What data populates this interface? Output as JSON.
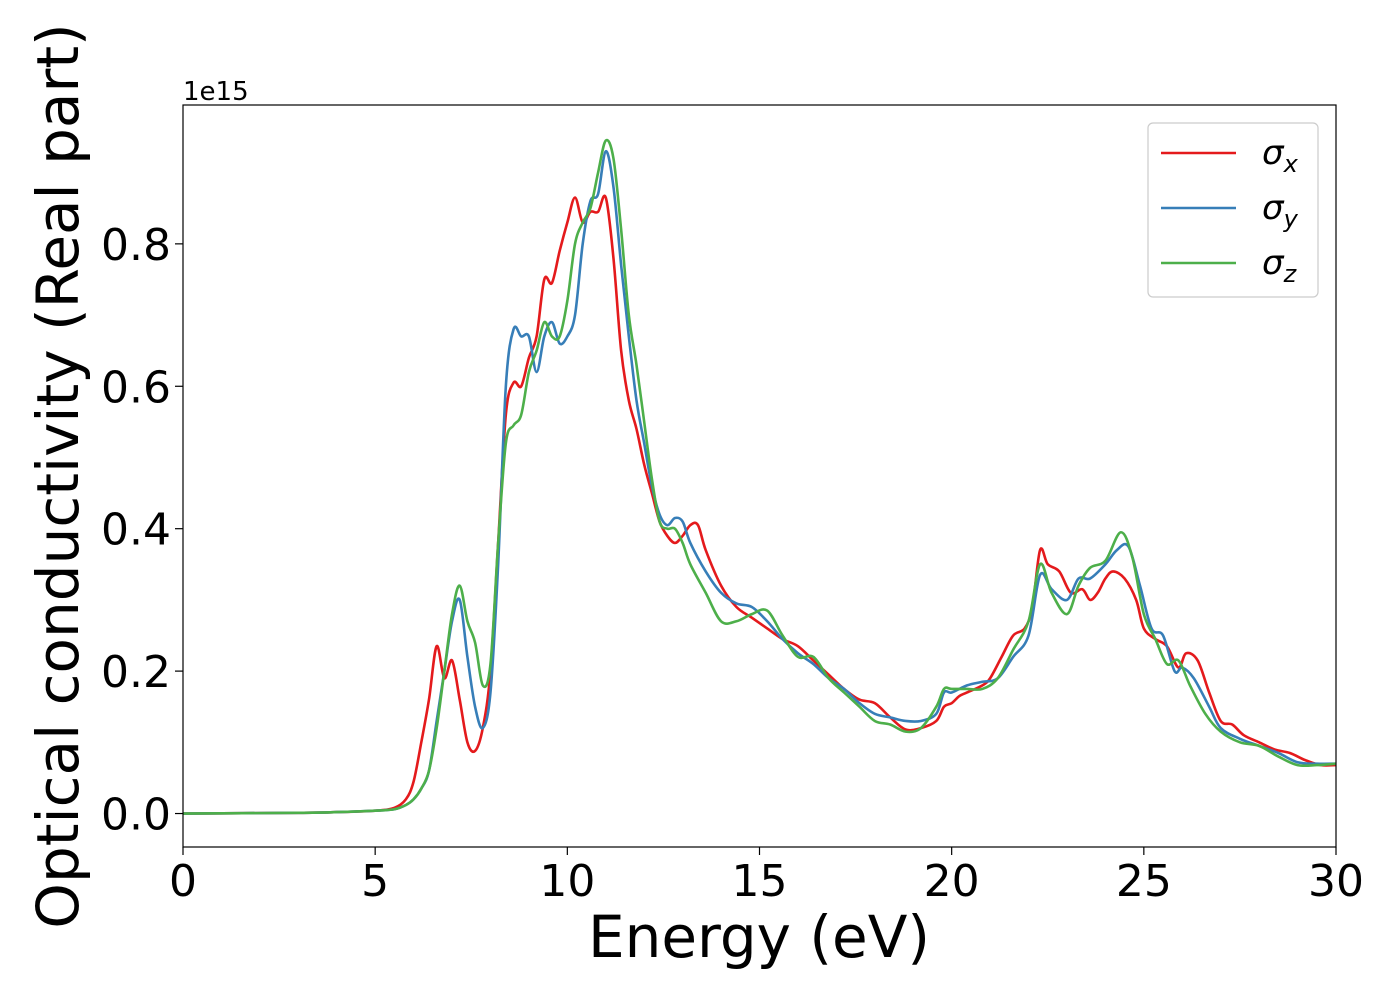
{
  "chart_data": {
    "type": "line",
    "xlabel": "Energy (eV)",
    "ylabel": "Optical conductivity (Real part)",
    "offset_label": "1e15",
    "xlim": [
      0,
      30
    ],
    "ylim": [
      -0.047,
      0.995
    ],
    "x_ticks": [
      0,
      5,
      10,
      15,
      20,
      25,
      30
    ],
    "y_ticks": [
      0.0,
      0.2,
      0.4,
      0.6,
      0.8
    ],
    "x_tick_labels": [
      "0",
      "5",
      "10",
      "15",
      "20",
      "25",
      "30"
    ],
    "y_tick_labels": [
      "0.0",
      "0.2",
      "0.4",
      "0.6",
      "0.8"
    ],
    "grid": false,
    "legend_position": "top-right",
    "series": [
      {
        "name": "σx",
        "base": "σ",
        "sub": "x",
        "color": "#e41a1c",
        "points": [
          [
            0,
            0
          ],
          [
            3,
            0.001
          ],
          [
            4,
            0.002
          ],
          [
            5,
            0.004
          ],
          [
            5.5,
            0.008
          ],
          [
            5.8,
            0.02
          ],
          [
            6.0,
            0.045
          ],
          [
            6.2,
            0.1
          ],
          [
            6.4,
            0.16
          ],
          [
            6.6,
            0.235
          ],
          [
            6.8,
            0.19
          ],
          [
            7.0,
            0.215
          ],
          [
            7.2,
            0.16
          ],
          [
            7.4,
            0.1
          ],
          [
            7.6,
            0.088
          ],
          [
            7.8,
            0.12
          ],
          [
            8.0,
            0.2
          ],
          [
            8.2,
            0.38
          ],
          [
            8.4,
            0.56
          ],
          [
            8.6,
            0.605
          ],
          [
            8.8,
            0.6
          ],
          [
            9.0,
            0.64
          ],
          [
            9.2,
            0.67
          ],
          [
            9.4,
            0.75
          ],
          [
            9.6,
            0.745
          ],
          [
            9.8,
            0.79
          ],
          [
            10.0,
            0.83
          ],
          [
            10.2,
            0.865
          ],
          [
            10.4,
            0.83
          ],
          [
            10.6,
            0.845
          ],
          [
            10.8,
            0.845
          ],
          [
            11.0,
            0.865
          ],
          [
            11.2,
            0.78
          ],
          [
            11.4,
            0.65
          ],
          [
            11.6,
            0.58
          ],
          [
            11.8,
            0.54
          ],
          [
            12.0,
            0.49
          ],
          [
            12.2,
            0.45
          ],
          [
            12.4,
            0.41
          ],
          [
            12.6,
            0.39
          ],
          [
            12.8,
            0.38
          ],
          [
            13.0,
            0.39
          ],
          [
            13.2,
            0.405
          ],
          [
            13.4,
            0.405
          ],
          [
            13.6,
            0.37
          ],
          [
            14.0,
            0.32
          ],
          [
            14.4,
            0.29
          ],
          [
            14.8,
            0.275
          ],
          [
            15.2,
            0.26
          ],
          [
            15.6,
            0.245
          ],
          [
            16.0,
            0.235
          ],
          [
            16.4,
            0.215
          ],
          [
            16.8,
            0.195
          ],
          [
            17.2,
            0.175
          ],
          [
            17.6,
            0.16
          ],
          [
            18.0,
            0.155
          ],
          [
            18.4,
            0.135
          ],
          [
            18.8,
            0.118
          ],
          [
            19.2,
            0.12
          ],
          [
            19.6,
            0.13
          ],
          [
            19.8,
            0.15
          ],
          [
            20.0,
            0.155
          ],
          [
            20.2,
            0.165
          ],
          [
            20.4,
            0.17
          ],
          [
            20.8,
            0.18
          ],
          [
            21.0,
            0.19
          ],
          [
            21.3,
            0.22
          ],
          [
            21.6,
            0.25
          ],
          [
            21.9,
            0.26
          ],
          [
            22.1,
            0.29
          ],
          [
            22.3,
            0.37
          ],
          [
            22.5,
            0.35
          ],
          [
            22.8,
            0.34
          ],
          [
            23.1,
            0.31
          ],
          [
            23.4,
            0.315
          ],
          [
            23.6,
            0.3
          ],
          [
            23.8,
            0.31
          ],
          [
            24.0,
            0.33
          ],
          [
            24.2,
            0.34
          ],
          [
            24.5,
            0.33
          ],
          [
            24.8,
            0.3
          ],
          [
            25.0,
            0.26
          ],
          [
            25.3,
            0.245
          ],
          [
            25.6,
            0.235
          ],
          [
            25.9,
            0.205
          ],
          [
            26.1,
            0.225
          ],
          [
            26.4,
            0.215
          ],
          [
            26.7,
            0.17
          ],
          [
            27.0,
            0.13
          ],
          [
            27.3,
            0.125
          ],
          [
            27.6,
            0.11
          ],
          [
            28.0,
            0.1
          ],
          [
            28.4,
            0.09
          ],
          [
            28.8,
            0.085
          ],
          [
            29.2,
            0.075
          ],
          [
            29.6,
            0.068
          ],
          [
            30,
            0.068
          ]
        ]
      },
      {
        "name": "σy",
        "base": "σ",
        "sub": "y",
        "color": "#377eb8",
        "points": [
          [
            0,
            0
          ],
          [
            3,
            0.001
          ],
          [
            4,
            0.002
          ],
          [
            5,
            0.004
          ],
          [
            5.5,
            0.006
          ],
          [
            5.8,
            0.012
          ],
          [
            6.0,
            0.02
          ],
          [
            6.2,
            0.035
          ],
          [
            6.4,
            0.06
          ],
          [
            6.6,
            0.13
          ],
          [
            6.8,
            0.2
          ],
          [
            7.0,
            0.27
          ],
          [
            7.2,
            0.3
          ],
          [
            7.4,
            0.22
          ],
          [
            7.6,
            0.15
          ],
          [
            7.8,
            0.12
          ],
          [
            8.0,
            0.17
          ],
          [
            8.2,
            0.35
          ],
          [
            8.4,
            0.6
          ],
          [
            8.6,
            0.68
          ],
          [
            8.8,
            0.67
          ],
          [
            9.0,
            0.67
          ],
          [
            9.2,
            0.62
          ],
          [
            9.4,
            0.67
          ],
          [
            9.6,
            0.69
          ],
          [
            9.8,
            0.66
          ],
          [
            10.0,
            0.67
          ],
          [
            10.2,
            0.7
          ],
          [
            10.4,
            0.8
          ],
          [
            10.6,
            0.86
          ],
          [
            10.8,
            0.87
          ],
          [
            11.0,
            0.93
          ],
          [
            11.2,
            0.88
          ],
          [
            11.4,
            0.77
          ],
          [
            11.6,
            0.67
          ],
          [
            11.8,
            0.58
          ],
          [
            12.0,
            0.52
          ],
          [
            12.2,
            0.46
          ],
          [
            12.4,
            0.42
          ],
          [
            12.6,
            0.405
          ],
          [
            12.8,
            0.415
          ],
          [
            13.0,
            0.41
          ],
          [
            13.2,
            0.38
          ],
          [
            13.6,
            0.34
          ],
          [
            14.0,
            0.31
          ],
          [
            14.4,
            0.295
          ],
          [
            14.8,
            0.29
          ],
          [
            15.2,
            0.27
          ],
          [
            15.6,
            0.245
          ],
          [
            16.0,
            0.225
          ],
          [
            16.4,
            0.21
          ],
          [
            16.8,
            0.19
          ],
          [
            17.2,
            0.175
          ],
          [
            17.6,
            0.155
          ],
          [
            18.0,
            0.14
          ],
          [
            18.4,
            0.135
          ],
          [
            18.8,
            0.13
          ],
          [
            19.2,
            0.13
          ],
          [
            19.6,
            0.14
          ],
          [
            19.8,
            0.17
          ],
          [
            20.0,
            0.17
          ],
          [
            20.4,
            0.18
          ],
          [
            20.8,
            0.185
          ],
          [
            21.2,
            0.19
          ],
          [
            21.6,
            0.22
          ],
          [
            22.0,
            0.25
          ],
          [
            22.3,
            0.335
          ],
          [
            22.6,
            0.315
          ],
          [
            23.0,
            0.3
          ],
          [
            23.3,
            0.33
          ],
          [
            23.6,
            0.33
          ],
          [
            24.0,
            0.35
          ],
          [
            24.3,
            0.37
          ],
          [
            24.6,
            0.375
          ],
          [
            24.9,
            0.32
          ],
          [
            25.2,
            0.26
          ],
          [
            25.5,
            0.25
          ],
          [
            25.8,
            0.2
          ],
          [
            26.0,
            0.205
          ],
          [
            26.3,
            0.19
          ],
          [
            26.7,
            0.15
          ],
          [
            27.0,
            0.12
          ],
          [
            27.5,
            0.105
          ],
          [
            28.0,
            0.095
          ],
          [
            28.5,
            0.085
          ],
          [
            29.0,
            0.072
          ],
          [
            29.5,
            0.07
          ],
          [
            30,
            0.07
          ]
        ]
      },
      {
        "name": "σz",
        "base": "σ",
        "sub": "z",
        "color": "#4daf4a",
        "points": [
          [
            0,
            0
          ],
          [
            3,
            0.001
          ],
          [
            4,
            0.002
          ],
          [
            5,
            0.004
          ],
          [
            5.5,
            0.006
          ],
          [
            5.8,
            0.012
          ],
          [
            6.0,
            0.02
          ],
          [
            6.2,
            0.035
          ],
          [
            6.4,
            0.06
          ],
          [
            6.6,
            0.12
          ],
          [
            6.8,
            0.2
          ],
          [
            7.0,
            0.28
          ],
          [
            7.2,
            0.32
          ],
          [
            7.4,
            0.27
          ],
          [
            7.6,
            0.24
          ],
          [
            7.8,
            0.18
          ],
          [
            8.0,
            0.21
          ],
          [
            8.2,
            0.38
          ],
          [
            8.4,
            0.52
          ],
          [
            8.6,
            0.545
          ],
          [
            8.8,
            0.56
          ],
          [
            9.0,
            0.62
          ],
          [
            9.2,
            0.65
          ],
          [
            9.4,
            0.69
          ],
          [
            9.6,
            0.67
          ],
          [
            9.8,
            0.67
          ],
          [
            10.0,
            0.72
          ],
          [
            10.2,
            0.8
          ],
          [
            10.4,
            0.83
          ],
          [
            10.6,
            0.85
          ],
          [
            10.8,
            0.9
          ],
          [
            11.0,
            0.945
          ],
          [
            11.2,
            0.92
          ],
          [
            11.4,
            0.82
          ],
          [
            11.6,
            0.7
          ],
          [
            11.8,
            0.63
          ],
          [
            12.0,
            0.55
          ],
          [
            12.2,
            0.47
          ],
          [
            12.4,
            0.41
          ],
          [
            12.6,
            0.4
          ],
          [
            12.8,
            0.4
          ],
          [
            13.0,
            0.38
          ],
          [
            13.2,
            0.35
          ],
          [
            13.6,
            0.31
          ],
          [
            14.0,
            0.27
          ],
          [
            14.4,
            0.27
          ],
          [
            14.8,
            0.28
          ],
          [
            15.2,
            0.285
          ],
          [
            15.6,
            0.25
          ],
          [
            16.0,
            0.22
          ],
          [
            16.4,
            0.22
          ],
          [
            16.8,
            0.19
          ],
          [
            17.2,
            0.17
          ],
          [
            17.6,
            0.15
          ],
          [
            18.0,
            0.13
          ],
          [
            18.4,
            0.125
          ],
          [
            18.8,
            0.115
          ],
          [
            19.2,
            0.12
          ],
          [
            19.6,
            0.15
          ],
          [
            19.8,
            0.175
          ],
          [
            20.0,
            0.175
          ],
          [
            20.4,
            0.175
          ],
          [
            20.8,
            0.175
          ],
          [
            21.2,
            0.19
          ],
          [
            21.6,
            0.23
          ],
          [
            22.0,
            0.27
          ],
          [
            22.3,
            0.35
          ],
          [
            22.6,
            0.31
          ],
          [
            23.0,
            0.28
          ],
          [
            23.3,
            0.32
          ],
          [
            23.6,
            0.345
          ],
          [
            24.0,
            0.355
          ],
          [
            24.4,
            0.395
          ],
          [
            24.7,
            0.36
          ],
          [
            25.0,
            0.28
          ],
          [
            25.3,
            0.245
          ],
          [
            25.6,
            0.21
          ],
          [
            25.9,
            0.215
          ],
          [
            26.2,
            0.18
          ],
          [
            26.6,
            0.14
          ],
          [
            27.0,
            0.115
          ],
          [
            27.5,
            0.1
          ],
          [
            28.0,
            0.095
          ],
          [
            28.5,
            0.08
          ],
          [
            29.0,
            0.068
          ],
          [
            29.5,
            0.068
          ],
          [
            30,
            0.07
          ]
        ]
      }
    ]
  }
}
